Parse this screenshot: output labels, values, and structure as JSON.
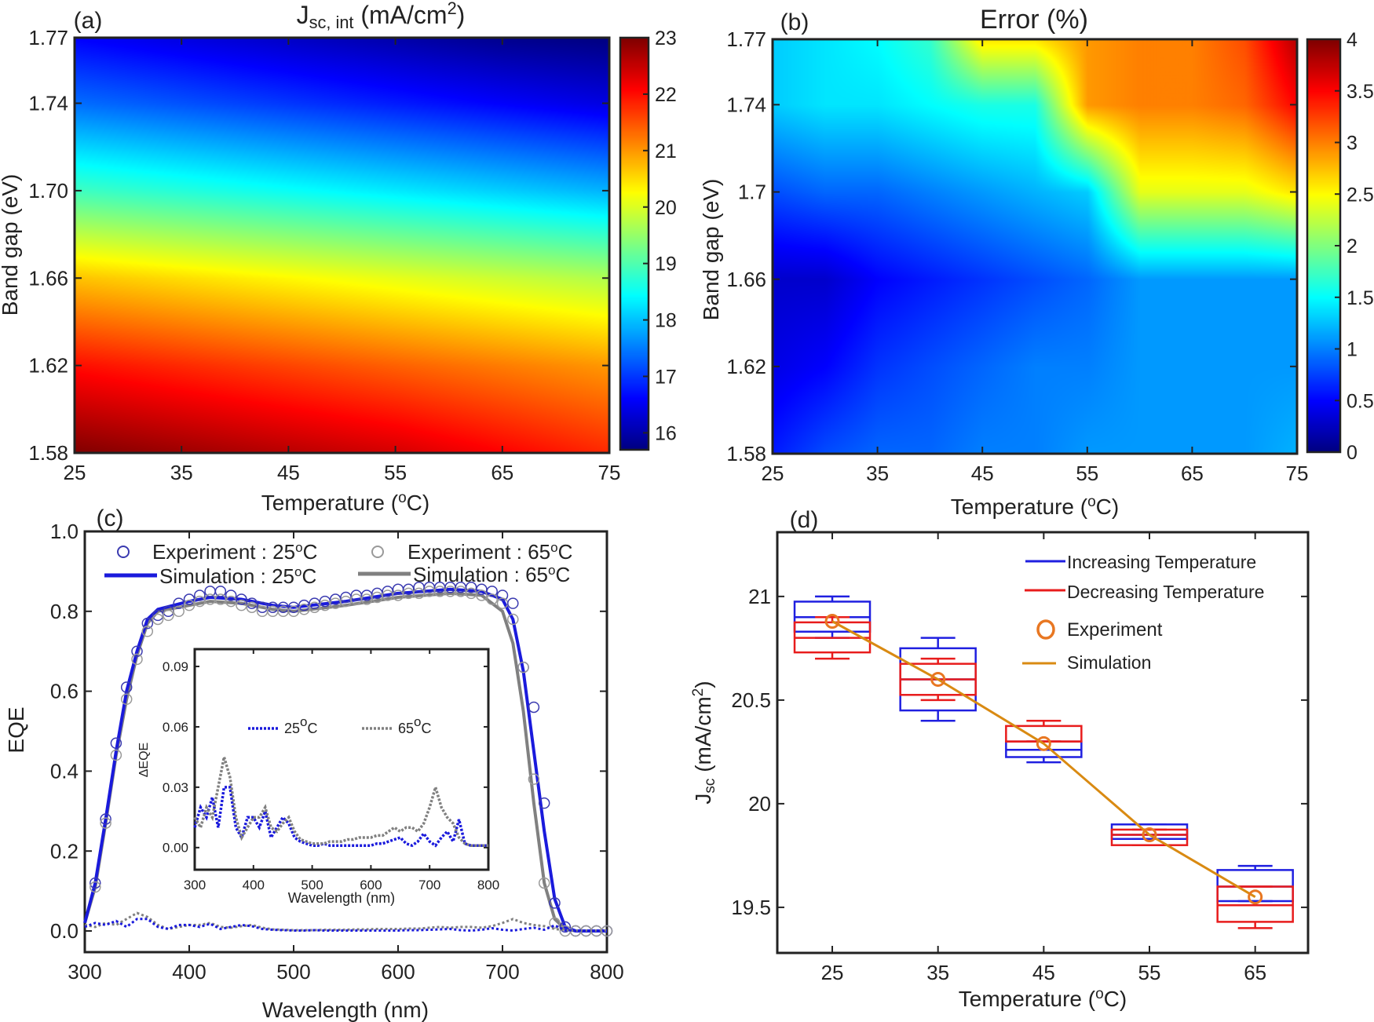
{
  "chart_data": [
    {
      "panel": "(a)",
      "type": "heatmap",
      "title_parts": [
        "J",
        "sc, int",
        " (mA/cm",
        "2",
        ")"
      ],
      "xlabel_parts": [
        "Temperature (",
        "o",
        "C)"
      ],
      "ylabel": "Band gap (eV)",
      "xlim": [
        25,
        75
      ],
      "ylim": [
        1.58,
        1.77
      ],
      "xticks": [
        "25",
        "35",
        "45",
        "55",
        "65",
        "75"
      ],
      "yticks": [
        "1.58",
        "1.62",
        "1.66",
        "1.70",
        "1.74",
        "1.77"
      ],
      "colorbar": {
        "range": [
          15.7,
          23
        ],
        "ticks": [
          "16",
          "17",
          "18",
          "19",
          "20",
          "21",
          "22",
          "23"
        ],
        "colormap": "jet"
      },
      "x": [
        25,
        35,
        45,
        55,
        65,
        75
      ],
      "y": [
        1.58,
        1.62,
        1.66,
        1.7,
        1.74,
        1.77
      ],
      "z": [
        [
          23.0,
          22.8,
          22.6,
          22.4,
          22.1,
          21.8
        ],
        [
          22.0,
          21.8,
          21.6,
          21.4,
          21.2,
          21.0
        ],
        [
          20.7,
          20.5,
          20.3,
          20.1,
          19.9,
          19.7
        ],
        [
          18.9,
          18.7,
          18.5,
          18.3,
          18.1,
          17.9
        ],
        [
          17.4,
          17.2,
          17.0,
          16.8,
          16.6,
          16.4
        ],
        [
          16.6,
          16.4,
          16.2,
          16.0,
          15.8,
          15.7
        ]
      ]
    },
    {
      "panel": "(b)",
      "type": "heatmap",
      "title": "Error (%)",
      "xlabel_parts": [
        "Temperature (",
        "o",
        "C)"
      ],
      "ylabel": "Band gap (eV)",
      "xlim": [
        25,
        75
      ],
      "ylim": [
        1.58,
        1.77
      ],
      "xticks": [
        "25",
        "35",
        "45",
        "55",
        "65",
        "75"
      ],
      "yticks": [
        "1.58",
        "1.62",
        "1.66",
        "1.7",
        "1.74",
        "1.77"
      ],
      "colorbar": {
        "range": [
          0,
          4
        ],
        "ticks": [
          "0",
          "0.5",
          "1",
          "1.5",
          "2",
          "2.5",
          "3",
          "3.5",
          "4"
        ],
        "colormap": "jet"
      },
      "x": [
        25,
        30,
        35,
        40,
        45,
        50,
        55,
        60,
        65,
        70,
        75
      ],
      "y": [
        1.58,
        1.62,
        1.66,
        1.7,
        1.74,
        1.77
      ],
      "z": [
        [
          0.6,
          0.8,
          0.9,
          0.9,
          1.0,
          1.0,
          1.1,
          1.1,
          1.1,
          1.1,
          1.2
        ],
        [
          0.4,
          0.5,
          0.7,
          0.8,
          0.9,
          1.0,
          1.0,
          1.1,
          1.1,
          1.1,
          1.1
        ],
        [
          0.3,
          0.3,
          0.5,
          0.6,
          0.7,
          0.8,
          0.9,
          1.1,
          1.1,
          1.1,
          1.1
        ],
        [
          0.8,
          0.9,
          0.9,
          1.0,
          1.1,
          1.2,
          1.3,
          2.4,
          2.4,
          2.4,
          2.6
        ],
        [
          1.3,
          1.4,
          1.4,
          1.5,
          1.6,
          1.6,
          2.9,
          3.0,
          3.0,
          3.1,
          3.5
        ],
        [
          1.3,
          1.4,
          1.5,
          1.7,
          2.6,
          2.6,
          2.9,
          3.0,
          3.0,
          3.2,
          3.8
        ]
      ]
    },
    {
      "panel": "(c)",
      "type": "line",
      "xlabel": "Wavelength (nm)",
      "ylabel": "EQE",
      "xlim": [
        300,
        800
      ],
      "ylim": [
        -0.053,
        1.0
      ],
      "xticks": [
        "300",
        "400",
        "500",
        "600",
        "700",
        "800"
      ],
      "yticks": [
        "0.0",
        "0.2",
        "0.4",
        "0.6",
        "0.8",
        "1.0"
      ],
      "legend": [
        "Experiment : 25",
        "Simulation : 25",
        "Experiment : 65",
        "Simulation : 65"
      ],
      "legend_unit": [
        "o",
        "C"
      ],
      "colors": {
        "c25": "#1a1adc",
        "c65": "#808080"
      },
      "x_exp": [
        310,
        320,
        330,
        340,
        350,
        360,
        370,
        380,
        390,
        400,
        410,
        420,
        430,
        440,
        450,
        460,
        470,
        480,
        490,
        500,
        510,
        520,
        530,
        540,
        550,
        560,
        570,
        580,
        590,
        600,
        610,
        620,
        630,
        640,
        650,
        660,
        670,
        680,
        690,
        700,
        710,
        720,
        730,
        740,
        750,
        760,
        770,
        780,
        790,
        800
      ],
      "exp25": [
        0.12,
        0.28,
        0.47,
        0.61,
        0.7,
        0.77,
        0.79,
        0.8,
        0.82,
        0.83,
        0.84,
        0.85,
        0.85,
        0.84,
        0.83,
        0.82,
        0.81,
        0.81,
        0.81,
        0.81,
        0.815,
        0.82,
        0.825,
        0.83,
        0.835,
        0.84,
        0.84,
        0.845,
        0.85,
        0.855,
        0.855,
        0.86,
        0.86,
        0.86,
        0.86,
        0.86,
        0.86,
        0.855,
        0.85,
        0.84,
        0.82,
        0.66,
        0.56,
        0.32,
        0.07,
        0.01,
        0,
        0,
        0,
        0
      ],
      "exp65": [
        0.11,
        0.27,
        0.44,
        0.58,
        0.68,
        0.75,
        0.78,
        0.79,
        0.8,
        0.815,
        0.825,
        0.83,
        0.83,
        0.825,
        0.815,
        0.81,
        0.8,
        0.8,
        0.8,
        0.8,
        0.805,
        0.81,
        0.815,
        0.82,
        0.825,
        0.83,
        0.83,
        0.835,
        0.84,
        0.84,
        0.845,
        0.845,
        0.85,
        0.85,
        0.85,
        0.85,
        0.845,
        0.84,
        0.83,
        0.82,
        0.78,
        0.66,
        0.38,
        0.12,
        0.02,
        0,
        0,
        0,
        0,
        0
      ],
      "x_sim": [
        300,
        310,
        320,
        330,
        340,
        350,
        360,
        370,
        400,
        420,
        450,
        480,
        500,
        550,
        600,
        650,
        680,
        700,
        710,
        720,
        730,
        740,
        750,
        760,
        770,
        800
      ],
      "sim25": [
        0.02,
        0.12,
        0.28,
        0.45,
        0.6,
        0.7,
        0.78,
        0.805,
        0.825,
        0.835,
        0.83,
        0.815,
        0.81,
        0.825,
        0.845,
        0.855,
        0.85,
        0.83,
        0.78,
        0.65,
        0.45,
        0.25,
        0.08,
        0.01,
        0,
        0
      ],
      "sim65": [
        0.02,
        0.11,
        0.27,
        0.44,
        0.58,
        0.69,
        0.77,
        0.8,
        0.815,
        0.825,
        0.82,
        0.805,
        0.8,
        0.815,
        0.835,
        0.845,
        0.84,
        0.8,
        0.72,
        0.55,
        0.32,
        0.12,
        0.03,
        0.005,
        0,
        0
      ],
      "inset": {
        "xlabel": "Wavelength (nm)",
        "ylabel": "ΔEQE",
        "xlim": [
          300,
          800
        ],
        "ylim": [
          -0.011,
          0.0986
        ],
        "xticks": [
          "300",
          "400",
          "500",
          "600",
          "700",
          "800"
        ],
        "yticks": [
          "0.00",
          "0.03",
          "0.06",
          "0.09"
        ],
        "legend": [
          "25",
          "65"
        ],
        "x": [
          300,
          310,
          320,
          330,
          340,
          350,
          360,
          370,
          380,
          390,
          400,
          410,
          420,
          430,
          440,
          450,
          460,
          470,
          480,
          490,
          500,
          510,
          520,
          530,
          540,
          550,
          560,
          570,
          580,
          590,
          600,
          610,
          620,
          630,
          640,
          650,
          660,
          670,
          680,
          690,
          700,
          710,
          720,
          730,
          740,
          750,
          760,
          770,
          780,
          790,
          800
        ],
        "d25": [
          0.01,
          0.02,
          0.015,
          0.025,
          0.01,
          0.03,
          0.03,
          0.01,
          0.005,
          0.015,
          0.015,
          0.01,
          0.018,
          0.005,
          0.01,
          0.015,
          0.012,
          0.005,
          0.003,
          0.002,
          0.001,
          0.001,
          0.002,
          0.001,
          0.001,
          0.001,
          0.001,
          0.001,
          0.001,
          0.001,
          0.001,
          0.002,
          0.002,
          0.003,
          0.004,
          0.005,
          0.002,
          0.001,
          0.003,
          0.007,
          0.003,
          0.001,
          0.005,
          0.008,
          0.003,
          0.014,
          0.002,
          0.001,
          0.001,
          0.001,
          0.001
        ],
        "d65": [
          0.015,
          0.01,
          0.02,
          0.015,
          0.03,
          0.045,
          0.035,
          0.015,
          0.005,
          0.01,
          0.015,
          0.015,
          0.02,
          0.01,
          0.008,
          0.012,
          0.015,
          0.008,
          0.004,
          0.003,
          0.002,
          0.002,
          0.002,
          0.003,
          0.003,
          0.003,
          0.004,
          0.004,
          0.005,
          0.005,
          0.005,
          0.006,
          0.006,
          0.008,
          0.01,
          0.008,
          0.01,
          0.01,
          0.008,
          0.012,
          0.02,
          0.03,
          0.02,
          0.015,
          0.012,
          0.005,
          0.002,
          0.001,
          0.001,
          0.001,
          0.001
        ]
      }
    },
    {
      "panel": "(d)",
      "type": "box",
      "xlabel_parts": [
        "Temperature (",
        "o",
        "C)"
      ],
      "ylabel_parts": [
        "J",
        "sc",
        " (mA/cm",
        "2",
        ")"
      ],
      "xlim": [
        19.8,
        70
      ],
      "ylim": [
        19.28,
        21.31
      ],
      "xticks": [
        "25",
        "35",
        "45",
        "55",
        "65"
      ],
      "yticks": [
        "19.5",
        "20",
        "20.5",
        "21"
      ],
      "categories": [
        25,
        35,
        45,
        55,
        65
      ],
      "legend": [
        "Increasing  Temperature",
        "Decreasing Temperature",
        "Experiment",
        "Simulation"
      ],
      "colors": {
        "increasing": "#1f1fe0",
        "decreasing": "#e81c1c",
        "experiment": "#e87722",
        "simulation": "#d98a12"
      },
      "increasing": [
        {
          "min": 20.8,
          "q1": 20.83,
          "median": 20.9,
          "q3": 20.975,
          "max": 21.0
        },
        {
          "min": 20.4,
          "q1": 20.45,
          "median": 20.6,
          "q3": 20.75,
          "max": 20.8
        },
        {
          "min": 20.2,
          "q1": 20.225,
          "median": 20.26,
          "q3": 20.3,
          "max": 20.3
        },
        {
          "min": 19.83,
          "q1": 19.83,
          "median": 19.85,
          "q3": 19.9,
          "max": 19.9
        },
        {
          "min": 19.53,
          "q1": 19.53,
          "median": 19.6,
          "q3": 19.68,
          "max": 19.7
        }
      ],
      "decreasing": [
        {
          "min": 20.7,
          "q1": 20.73,
          "median": 20.8,
          "q3": 20.875,
          "max": 20.9
        },
        {
          "min": 20.5,
          "q1": 20.525,
          "median": 20.6,
          "q3": 20.675,
          "max": 20.7
        },
        {
          "min": 20.3,
          "q1": 20.3,
          "median": 20.3,
          "q3": 20.375,
          "max": 20.4
        },
        {
          "min": 19.8,
          "q1": 19.8,
          "median": 19.85,
          "q3": 19.875,
          "max": 19.875
        },
        {
          "min": 19.4,
          "q1": 19.43,
          "median": 19.51,
          "q3": 19.6,
          "max": 19.6
        }
      ],
      "experiment": [
        20.88,
        20.6,
        20.29,
        19.85,
        19.55
      ],
      "simulation": [
        20.88,
        20.6,
        20.29,
        19.85,
        19.55
      ]
    }
  ]
}
